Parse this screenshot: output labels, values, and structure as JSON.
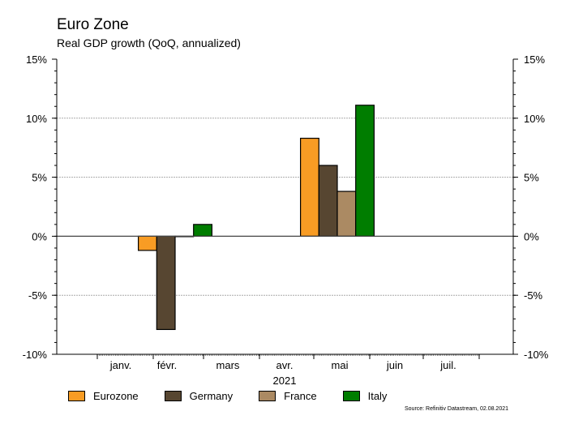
{
  "title": "Euro Zone",
  "subtitle": "Real GDP growth (QoQ, annualized)",
  "source": "Source: Refinitiv Datastream, 02.08.2021",
  "chart_data": {
    "type": "bar",
    "title": "Euro Zone",
    "subtitle": "Real GDP growth (QoQ, annualized)",
    "x_periods": [
      "2021-Q1",
      "2021-Q2"
    ],
    "xlabel": "2021",
    "x_tick_labels": [
      "janv.",
      "févr.",
      "mars",
      "avr.",
      "mai",
      "juin",
      "juil."
    ],
    "y_tick_labels": [
      "15%",
      "10%",
      "5%",
      "0%",
      "-5%",
      "-10%"
    ],
    "y_ticks": [
      15,
      10,
      5,
      0,
      -5,
      -10
    ],
    "ylim": [
      -10,
      15
    ],
    "y_axis_both_sides": true,
    "grid": "horizontal dotted",
    "legend_position": "bottom",
    "series": [
      {
        "name": "Eurozone",
        "color": "#F89C24",
        "values": [
          -1.2,
          8.3
        ]
      },
      {
        "name": "Germany",
        "color": "#574631",
        "values": [
          -7.9,
          6.0
        ]
      },
      {
        "name": "France",
        "color": "#AB8A63",
        "values": [
          0.0,
          3.8
        ]
      },
      {
        "name": "Italy",
        "color": "#007D00",
        "values": [
          1.0,
          11.1
        ]
      }
    ]
  }
}
